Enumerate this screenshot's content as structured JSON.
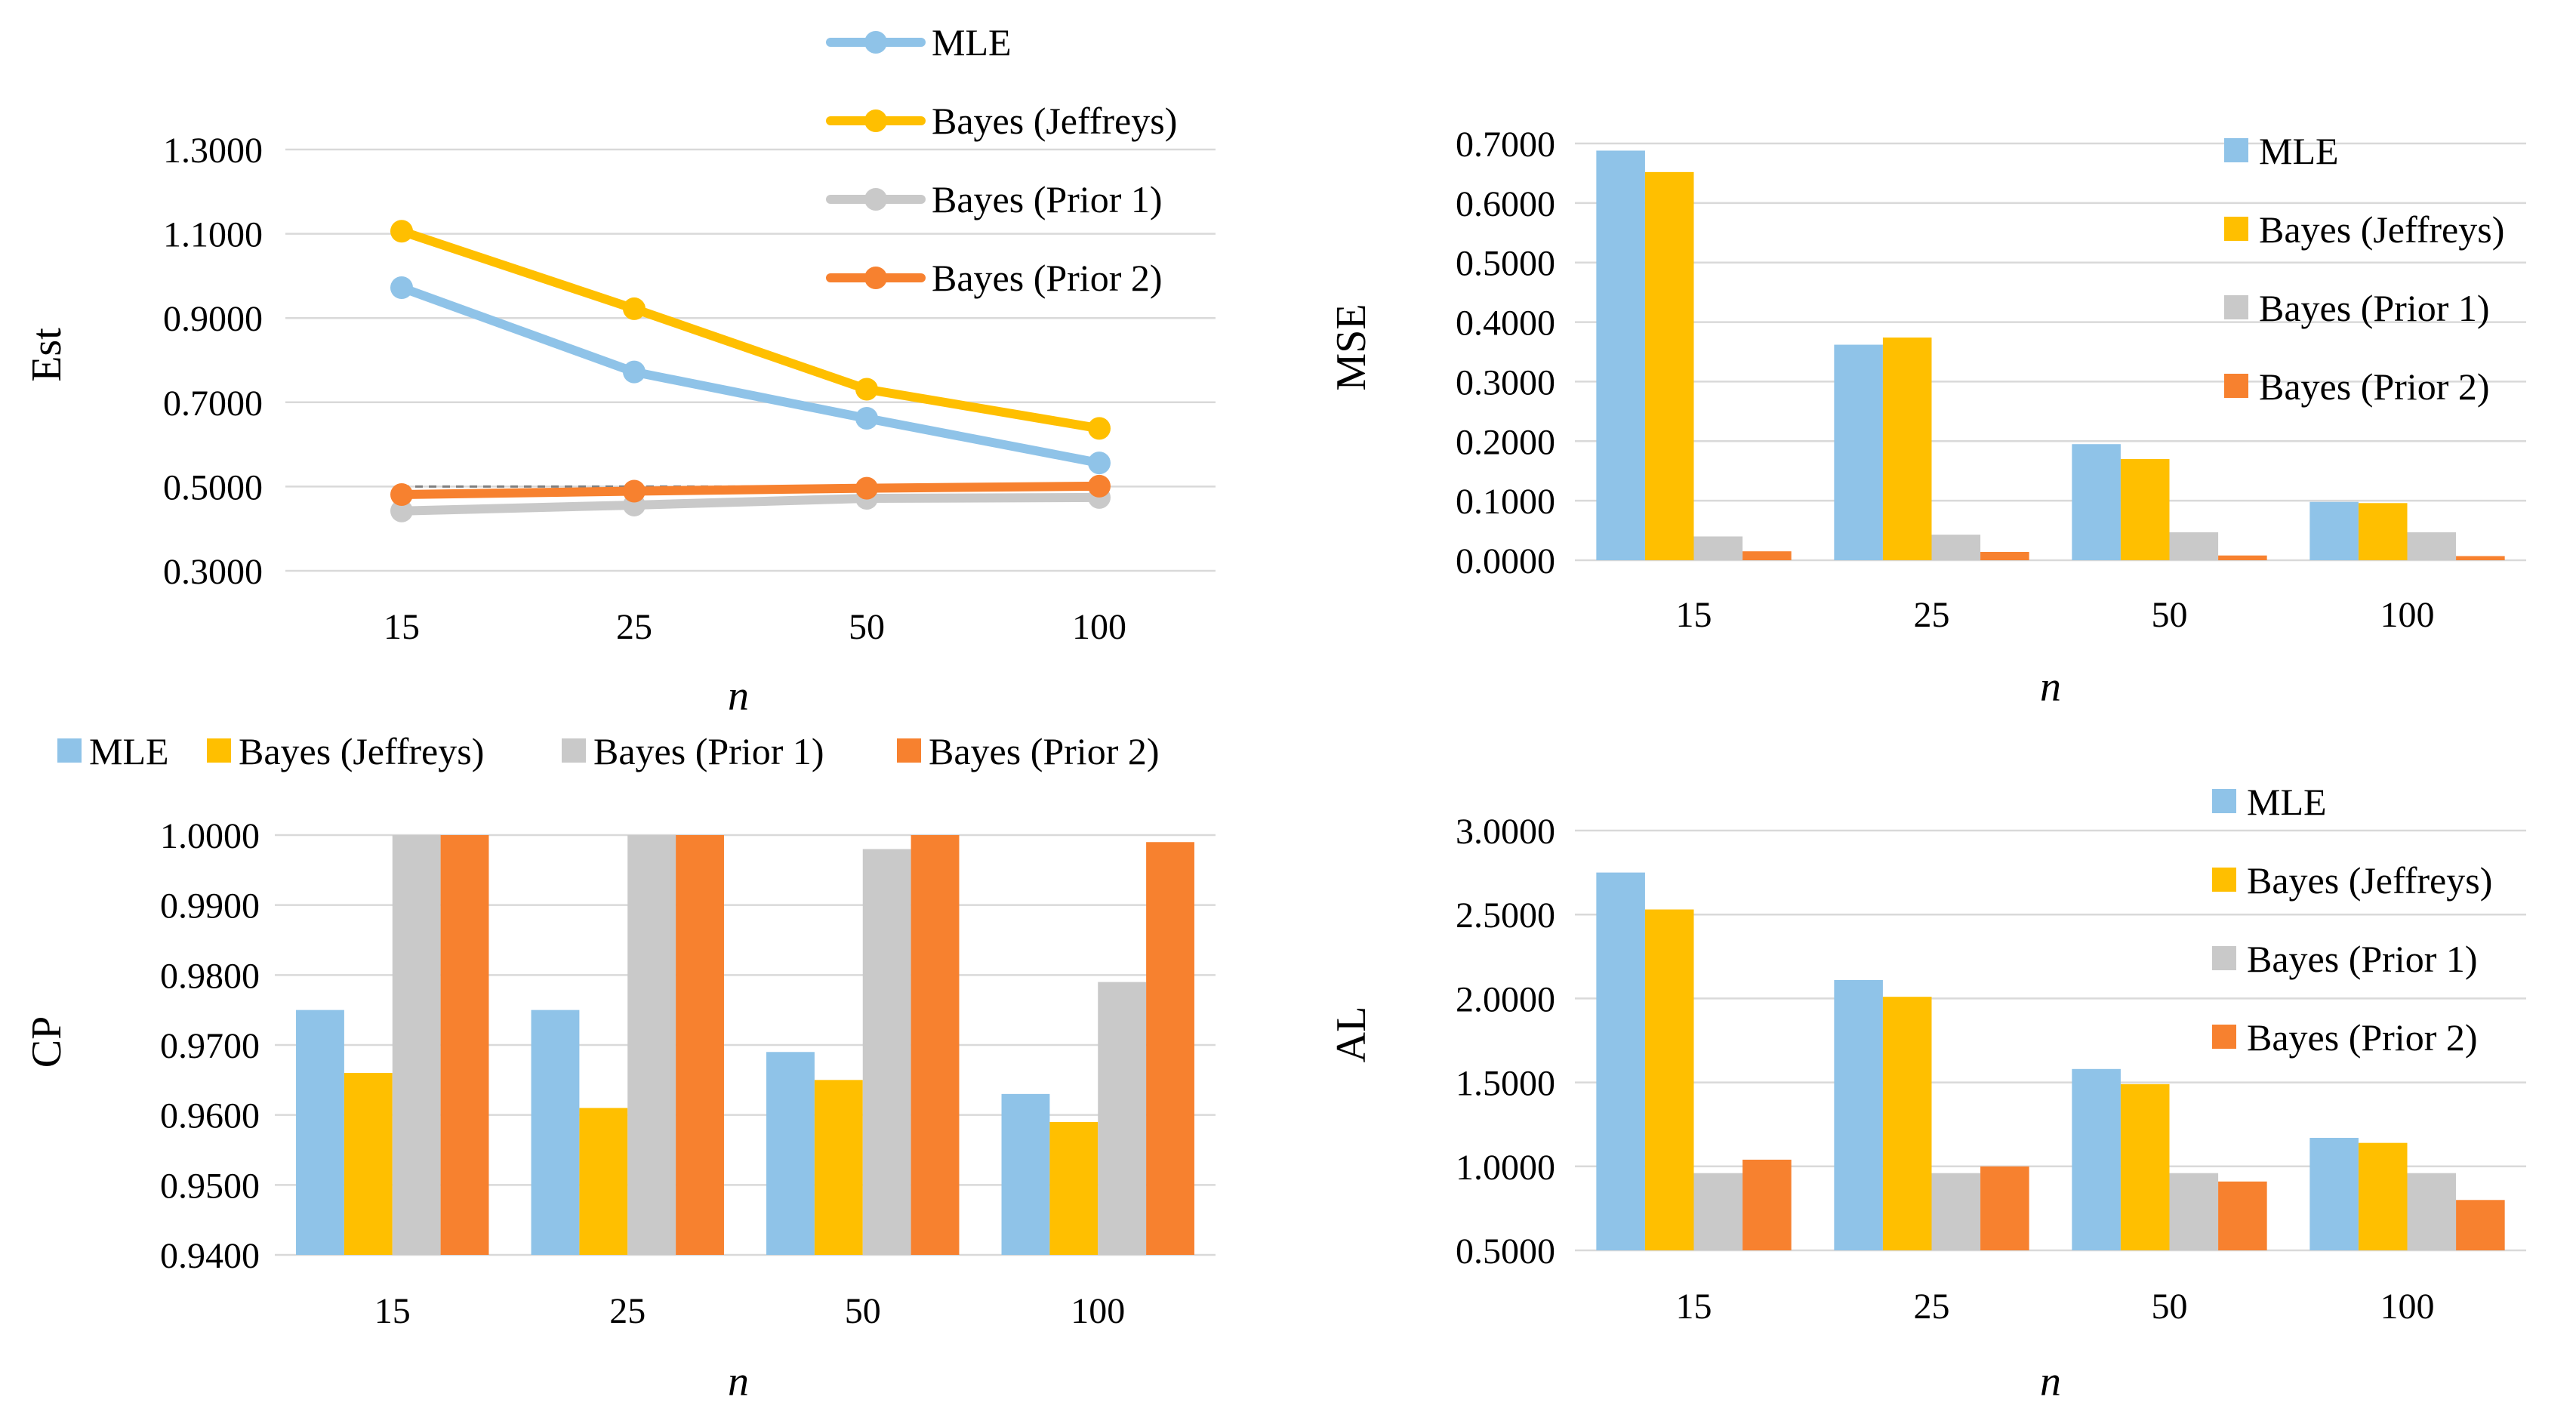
{
  "series_names": [
    "MLE",
    "Bayes (Jeffreys)",
    "Bayes (Prior 1)",
    "Bayes (Prior 2)"
  ],
  "colors": {
    "mle": "#8fc3e8",
    "jeffreys": "#ffbf00",
    "prior1": "#c9c9c9",
    "prior2": "#f7812f",
    "grid": "#d9d9d9",
    "reference": "#7f7f7f"
  },
  "chart_data": [
    {
      "type": "line",
      "ylabel": "Est",
      "xlabel": "n",
      "categories": [
        "15",
        "25",
        "50",
        "100"
      ],
      "ylim": [
        0.3,
        1.3
      ],
      "yticks": [
        "0.3000",
        "0.5000",
        "0.7000",
        "0.9000",
        "1.1000",
        "1.3000"
      ],
      "reference_line": 0.5,
      "legend_position": "top-right",
      "series": [
        {
          "name": "MLE",
          "values": [
            0.972,
            0.772,
            0.662,
            0.556
          ]
        },
        {
          "name": "Bayes (Jeffreys)",
          "values": [
            1.106,
            0.922,
            0.731,
            0.638
          ]
        },
        {
          "name": "Bayes (Prior 1)",
          "values": [
            0.442,
            0.456,
            0.472,
            0.474
          ]
        },
        {
          "name": "Bayes (Prior 2)",
          "values": [
            0.481,
            0.489,
            0.496,
            0.501
          ]
        }
      ]
    },
    {
      "type": "bar",
      "ylabel": "MSE",
      "xlabel": "n",
      "categories": [
        "15",
        "25",
        "50",
        "100"
      ],
      "ylim": [
        0.0,
        0.7
      ],
      "yticks": [
        "0.0000",
        "0.1000",
        "0.2000",
        "0.3000",
        "0.4000",
        "0.5000",
        "0.6000",
        "0.7000"
      ],
      "legend_position": "right",
      "series": [
        {
          "name": "MLE",
          "values": [
            0.688,
            0.362,
            0.195,
            0.098
          ]
        },
        {
          "name": "Bayes (Jeffreys)",
          "values": [
            0.652,
            0.374,
            0.17,
            0.096
          ]
        },
        {
          "name": "Bayes (Prior 1)",
          "values": [
            0.04,
            0.043,
            0.047,
            0.047
          ]
        },
        {
          "name": "Bayes (Prior 2)",
          "values": [
            0.015,
            0.014,
            0.008,
            0.007
          ]
        }
      ]
    },
    {
      "type": "bar",
      "ylabel": "CP",
      "xlabel": "n",
      "categories": [
        "15",
        "25",
        "50",
        "100"
      ],
      "ylim": [
        0.94,
        1.0
      ],
      "yticks": [
        "0.9400",
        "0.9500",
        "0.9600",
        "0.9700",
        "0.9800",
        "0.9900",
        "1.0000"
      ],
      "legend_position": "top",
      "series": [
        {
          "name": "MLE",
          "values": [
            0.975,
            0.975,
            0.969,
            0.963
          ]
        },
        {
          "name": "Bayes (Jeffreys)",
          "values": [
            0.966,
            0.961,
            0.965,
            0.959
          ]
        },
        {
          "name": "Bayes (Prior 1)",
          "values": [
            1.0,
            1.0,
            0.998,
            0.979
          ]
        },
        {
          "name": "Bayes (Prior 2)",
          "values": [
            1.0,
            1.0,
            1.0,
            0.999
          ]
        }
      ]
    },
    {
      "type": "bar",
      "ylabel": "AL",
      "xlabel": "n",
      "categories": [
        "15",
        "25",
        "50",
        "100"
      ],
      "ylim": [
        0.5,
        3.0
      ],
      "yticks": [
        "0.5000",
        "1.0000",
        "1.5000",
        "2.0000",
        "2.5000",
        "3.0000"
      ],
      "legend_position": "right",
      "series": [
        {
          "name": "MLE",
          "values": [
            2.75,
            2.11,
            1.58,
            1.17
          ]
        },
        {
          "name": "Bayes (Jeffreys)",
          "values": [
            2.53,
            2.01,
            1.49,
            1.14
          ]
        },
        {
          "name": "Bayes (Prior 1)",
          "values": [
            0.96,
            0.96,
            0.96,
            0.96
          ]
        },
        {
          "name": "Bayes (Prior 2)",
          "values": [
            1.04,
            1.0,
            0.91,
            0.8
          ]
        }
      ]
    }
  ]
}
